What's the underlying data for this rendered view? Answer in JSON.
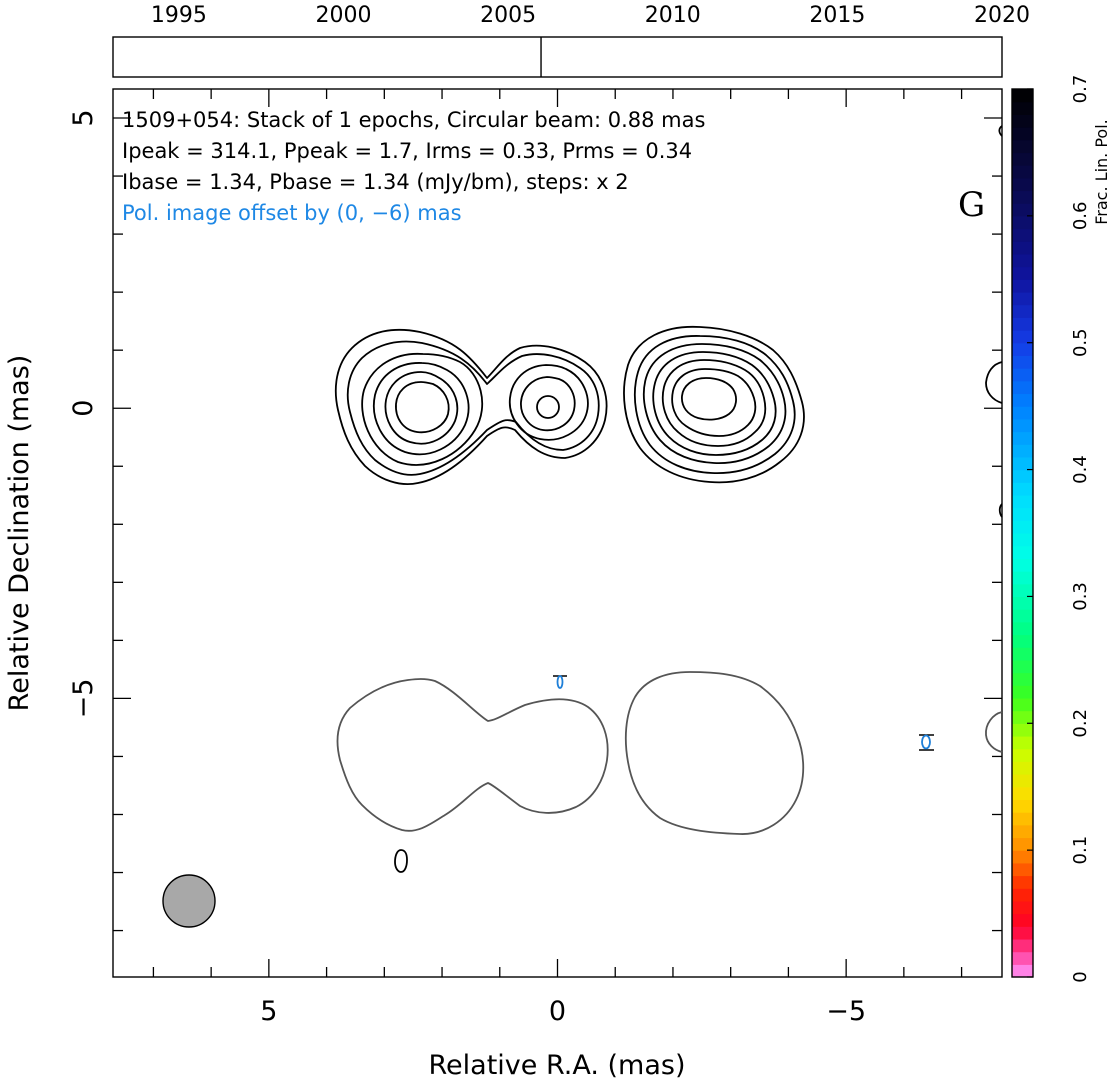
{
  "chart_data": {
    "type": "contour",
    "source": "1509+054",
    "panel_letter": "G",
    "annotations": {
      "line1": "1509+054: Stack of 1 epochs, Circular beam: 0.88 mas",
      "line2": "Ipeak = 314.1, Ppeak = 1.7, Irms = 0.33, Prms = 0.34",
      "line3": "Ibase = 1.34, Pbase = 1.34 (mJy/bm), steps: x 2",
      "line4": "Pol. image offset by (0, −6) mas"
    },
    "xlabel": "Relative R.A. (mas)",
    "ylabel": "Relative Declination (mas)",
    "xlim": [
      7.7,
      -7.7
    ],
    "ylim": [
      -9.8,
      5.5
    ],
    "x_ticks": [
      5,
      0,
      -5
    ],
    "x_tick_labels": [
      "5",
      "0",
      "−5"
    ],
    "y_ticks": [
      5,
      0,
      -5
    ],
    "y_tick_labels": [
      "5",
      "0",
      "−5"
    ],
    "epoch_axis": {
      "range": [
        1993,
        2020
      ],
      "ticks": [
        1995,
        2000,
        2005,
        2010,
        2015,
        2020
      ],
      "tick_labels": [
        "1995",
        "2000",
        "2005",
        "2010",
        "2015",
        "2020"
      ],
      "epochs": [
        2006.0
      ]
    },
    "colorbar": {
      "label": "Frac. Lin. Pol.",
      "range": [
        0,
        0.7
      ],
      "ticks": [
        0,
        0.1,
        0.2,
        0.3,
        0.4,
        0.5,
        0.6,
        0.7
      ],
      "tick_labels": [
        "0",
        "0.1",
        "0.2",
        "0.3",
        "0.4",
        "0.5",
        "0.6",
        "0.7"
      ]
    },
    "components": [
      {
        "ra": 2.15,
        "dec": 0.0
      },
      {
        "ra": 0.0,
        "dec": 0.0
      },
      {
        "ra": -2.7,
        "dec": 0.15
      }
    ],
    "beam": {
      "ra": 6.15,
      "dec": -8.55,
      "diameter_mas": 0.88
    },
    "colors": {
      "stokes_i": "#000000",
      "polarization": "#555555",
      "pol_vector": "#1e7fd8",
      "annotation_pol": "#1e88e5",
      "beam": "#a8a8a8"
    }
  }
}
